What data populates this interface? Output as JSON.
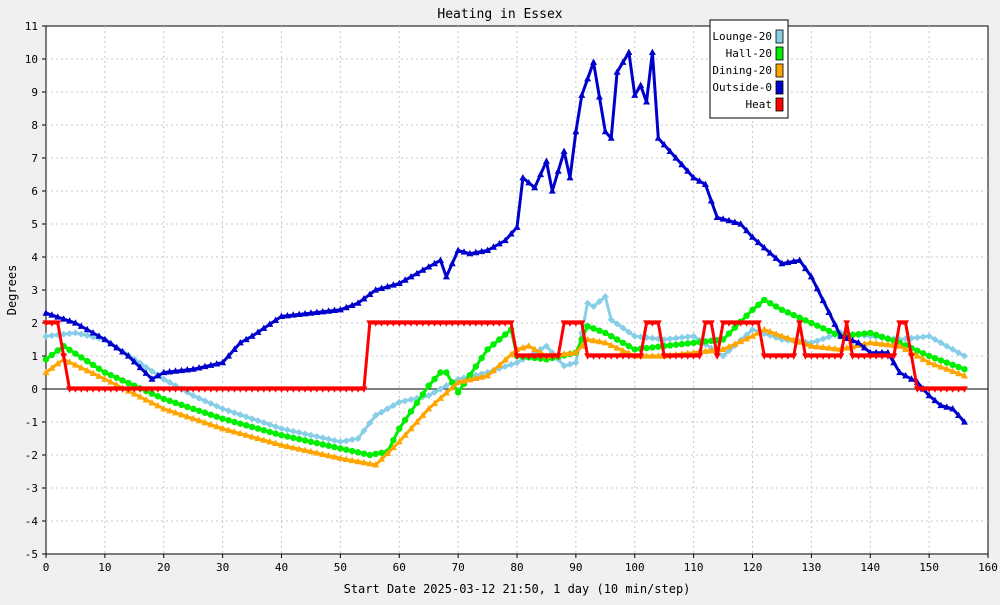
{
  "chart_data": {
    "type": "line",
    "title": "Heating in Essex",
    "xlabel": "Start Date 2025-03-12 21:50, 1 day (10 min/step)",
    "ylabel": "Degrees",
    "xlim": [
      0,
      160
    ],
    "ylim": [
      -5,
      11
    ],
    "x_ticks": [
      0,
      10,
      20,
      30,
      40,
      50,
      60,
      70,
      80,
      90,
      100,
      110,
      120,
      130,
      140,
      150,
      160
    ],
    "y_ticks": [
      -5,
      -4,
      -3,
      -2,
      -1,
      0,
      1,
      2,
      3,
      4,
      5,
      6,
      7,
      8,
      9,
      10,
      11
    ],
    "grid": true,
    "legend_position": "top-right",
    "series": [
      {
        "name": "Lounge-20",
        "color": "#87cee6",
        "marker": "diamond",
        "x": [
          0,
          5,
          10,
          15,
          20,
          25,
          30,
          35,
          40,
          45,
          50,
          53,
          56,
          60,
          65,
          70,
          75,
          80,
          85,
          88,
          90,
          92,
          93,
          95,
          96,
          100,
          105,
          110,
          115,
          120,
          125,
          130,
          135,
          140,
          145,
          150,
          156
        ],
        "y": [
          1.6,
          1.7,
          1.5,
          0.9,
          0.3,
          -0.2,
          -0.6,
          -0.9,
          -1.2,
          -1.4,
          -1.6,
          -1.5,
          -0.8,
          -0.4,
          -0.2,
          0.3,
          0.5,
          0.8,
          1.3,
          0.7,
          0.8,
          2.6,
          2.5,
          2.8,
          2.1,
          1.6,
          1.5,
          1.6,
          1.0,
          1.8,
          1.5,
          1.4,
          1.7,
          1.6,
          1.5,
          1.6,
          1.0
        ]
      },
      {
        "name": "Hall-20",
        "color": "#00ee00",
        "marker": "circle",
        "x": [
          0,
          3,
          10,
          20,
          30,
          40,
          50,
          55,
          58,
          60,
          65,
          67,
          68,
          70,
          75,
          79,
          80,
          85,
          90,
          92,
          95,
          100,
          105,
          110,
          115,
          120,
          122,
          125,
          130,
          135,
          140,
          145,
          150,
          156
        ],
        "y": [
          0.9,
          1.3,
          0.5,
          -0.3,
          -0.9,
          -1.4,
          -1.8,
          -2.0,
          -1.9,
          -1.2,
          0.1,
          0.5,
          0.5,
          -0.1,
          1.2,
          1.8,
          1.0,
          0.9,
          1.1,
          1.9,
          1.7,
          1.2,
          1.3,
          1.4,
          1.5,
          2.4,
          2.7,
          2.4,
          2.0,
          1.6,
          1.7,
          1.4,
          1.0,
          0.6
        ]
      },
      {
        "name": "Dining-20",
        "color": "#ffa500",
        "marker": "triangle",
        "x": [
          0,
          3,
          10,
          20,
          30,
          40,
          50,
          56,
          60,
          65,
          70,
          75,
          80,
          82,
          85,
          90,
          92,
          95,
          100,
          105,
          110,
          115,
          120,
          122,
          125,
          130,
          135,
          140,
          145,
          150,
          156
        ],
        "y": [
          0.5,
          0.9,
          0.3,
          -0.6,
          -1.2,
          -1.7,
          -2.1,
          -2.3,
          -1.6,
          -0.6,
          0.2,
          0.4,
          1.2,
          1.3,
          1.0,
          1.1,
          1.5,
          1.4,
          1.0,
          1.0,
          1.1,
          1.2,
          1.6,
          1.8,
          1.6,
          1.3,
          1.2,
          1.4,
          1.3,
          0.8,
          0.4
        ]
      },
      {
        "name": "Outside-0",
        "color": "#0000cc",
        "marker": "triangle",
        "x": [
          0,
          5,
          10,
          14,
          18,
          20,
          25,
          30,
          33,
          35,
          40,
          45,
          50,
          53,
          56,
          60,
          65,
          67,
          68,
          70,
          72,
          75,
          78,
          80,
          81,
          83,
          85,
          86,
          88,
          89,
          90,
          91,
          93,
          95,
          96,
          97,
          99,
          100,
          101,
          102,
          103,
          104,
          106,
          110,
          112,
          114,
          118,
          120,
          125,
          128,
          130,
          135,
          138,
          140,
          143,
          145,
          148,
          150,
          152,
          154,
          156
        ],
        "y": [
          2.3,
          2.0,
          1.5,
          1.0,
          0.3,
          0.5,
          0.6,
          0.8,
          1.4,
          1.6,
          2.2,
          2.3,
          2.4,
          2.6,
          3.0,
          3.2,
          3.7,
          3.9,
          3.4,
          4.2,
          4.1,
          4.2,
          4.5,
          4.9,
          6.4,
          6.1,
          6.9,
          6.0,
          7.2,
          6.4,
          7.8,
          8.9,
          9.9,
          7.8,
          7.6,
          9.6,
          10.2,
          8.9,
          9.2,
          8.7,
          10.2,
          7.6,
          7.2,
          6.4,
          6.2,
          5.2,
          5.0,
          4.6,
          3.8,
          3.9,
          3.4,
          1.6,
          1.4,
          1.1,
          1.1,
          0.5,
          0.2,
          -0.2,
          -0.5,
          -0.6,
          -1.0
        ]
      },
      {
        "name": "Heat",
        "color": "#ff0000",
        "marker": "triangle-down",
        "x": [
          0,
          2,
          3,
          4,
          54,
          55,
          79,
          80,
          87,
          88,
          91,
          92,
          101,
          102,
          104,
          105,
          111,
          112,
          113,
          114,
          115,
          121,
          122,
          127,
          128,
          129,
          135,
          136,
          137,
          144,
          145,
          146,
          147,
          148,
          156
        ],
        "y": [
          2,
          2,
          1,
          0,
          0,
          2,
          2,
          1,
          1,
          2,
          2,
          1,
          1,
          2,
          2,
          1,
          1,
          2,
          2,
          1,
          2,
          2,
          1,
          1,
          2,
          1,
          1,
          2,
          1,
          1,
          2,
          2,
          1,
          0,
          0
        ]
      }
    ]
  }
}
